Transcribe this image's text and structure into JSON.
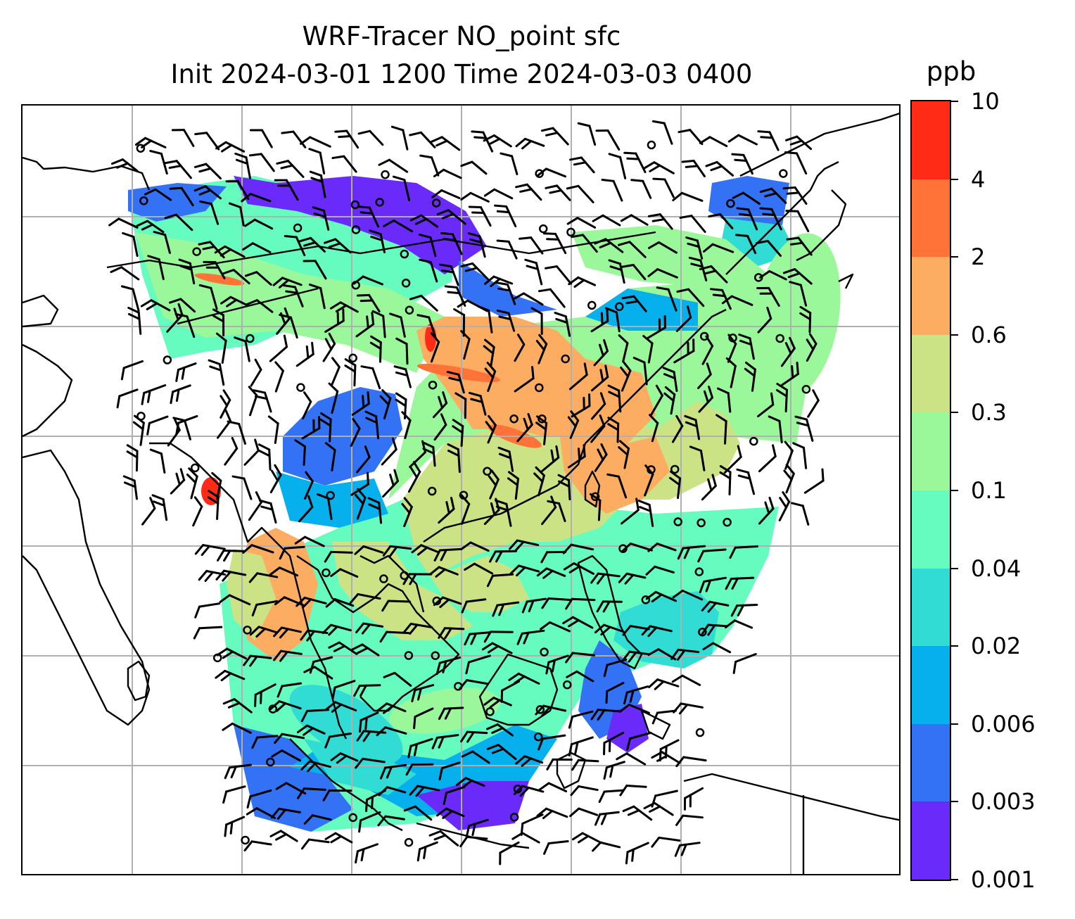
{
  "title": {
    "line1": "WRF-Tracer NO_point sfc",
    "line2": "Init 2024-03-01 1200 Time 2024-03-03 0400"
  },
  "colorbar": {
    "unit": "ppb",
    "levels": [
      "0.001",
      "0.003",
      "0.006",
      "0.02",
      "0.04",
      "0.1",
      "0.3",
      "0.6",
      "2",
      "4",
      "10"
    ],
    "colors": [
      "#6a2bfa",
      "#3372f4",
      "#05b0ec",
      "#30dcd4",
      "#66fcc0",
      "#9af79a",
      "#cbe285",
      "#fdad61",
      "#ff7238",
      "#ff2b17"
    ]
  },
  "map": {
    "gridline_color": "#b0b0b0",
    "coastline_color": "#000000",
    "barb_color": "#000000",
    "no_data_color": "#ffffff"
  }
}
